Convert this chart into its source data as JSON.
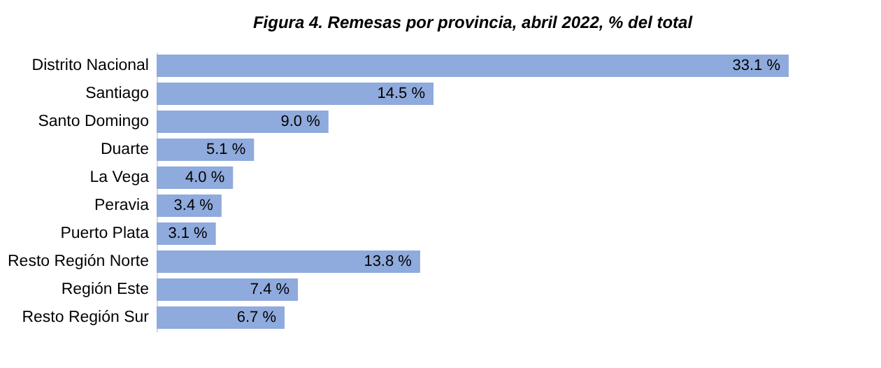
{
  "chart_data": {
    "type": "bar",
    "orientation": "horizontal",
    "title": "Figura 4. Remesas por provincia, abril 2022, % del total",
    "categories": [
      "Distrito Nacional",
      "Santiago",
      "Santo Domingo",
      "Duarte",
      "La Vega",
      "Peravia",
      "Puerto Plata",
      "Resto Región Norte",
      "Región Este",
      "Resto Región Sur"
    ],
    "values": [
      33.1,
      14.5,
      9.0,
      5.1,
      4.0,
      3.4,
      3.1,
      13.8,
      7.4,
      6.7
    ],
    "value_labels": [
      "33.1 %",
      "14.5 %",
      "9.0 %",
      "5.1 %",
      "4.0 %",
      "3.4 %",
      "3.1 %",
      "13.8 %",
      "7.4 %",
      "6.7 %"
    ],
    "color": "#8faadc",
    "grid": false
  }
}
